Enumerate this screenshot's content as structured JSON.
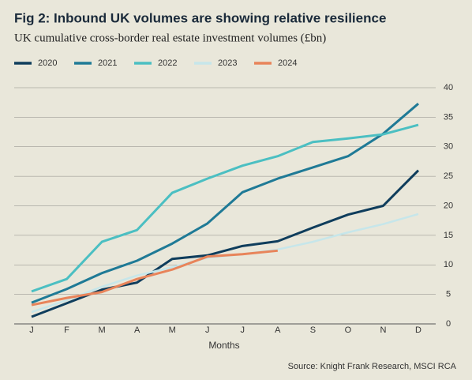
{
  "chart_data": {
    "type": "line",
    "title": "Fig 2: Inbound UK volumes are showing relative resilience",
    "subtitle": "UK cumulative cross-border real estate investment volumes (£bn)",
    "x_label": "Months",
    "source": "Source: Knight Frank Research, MSCI RCA",
    "categories": [
      "J",
      "F",
      "M",
      "A",
      "M",
      "J",
      "J",
      "A",
      "S",
      "O",
      "N",
      "D"
    ],
    "series": [
      {
        "name": "2020",
        "color": "#0f3d5c",
        "values": [
          1.2,
          3.5,
          5.8,
          7,
          11,
          11.6,
          13.2,
          14,
          16.3,
          18.5,
          20,
          26
        ]
      },
      {
        "name": "2021",
        "color": "#1f7a96",
        "values": [
          3.6,
          5.9,
          8.6,
          10.7,
          13.6,
          17,
          22.3,
          24.6,
          26.5,
          28.4,
          32.2,
          37.3
        ]
      },
      {
        "name": "2022",
        "color": "#4bbfc2",
        "values": [
          5.5,
          7.6,
          13.9,
          15.9,
          22.2,
          24.6,
          26.8,
          28.4,
          30.8,
          31.4,
          32.1,
          33.7
        ]
      },
      {
        "name": "2023",
        "color": "#c6e6ea",
        "values": [
          2,
          4,
          6.3,
          8.2,
          9.6,
          11.2,
          11.8,
          12.6,
          13.9,
          15.5,
          16.9,
          18.6
        ]
      },
      {
        "name": "2024",
        "color": "#e8845a",
        "values": [
          3.2,
          4.4,
          5.4,
          7.6,
          9.2,
          11.4,
          11.8,
          12.4,
          null,
          null,
          null,
          null
        ]
      }
    ],
    "ylim": [
      0,
      40
    ],
    "yticks": [
      0,
      5,
      10,
      15,
      20,
      25,
      30,
      35,
      40
    ],
    "grid": true
  }
}
